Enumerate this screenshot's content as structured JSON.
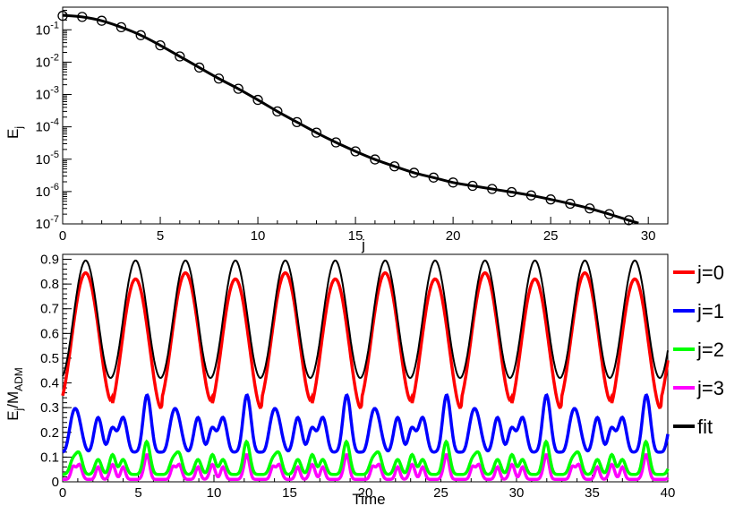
{
  "chart_data": [
    {
      "type": "scatter",
      "xlabel": "j",
      "ylabel": "E",
      "ylabel_sub": "j",
      "xlim": [
        0,
        31
      ],
      "ylim": [
        1e-07,
        0.5
      ],
      "yscale": "log",
      "xticks": [
        0,
        5,
        10,
        15,
        20,
        25,
        30
      ],
      "yticks": [
        {
          "exp": "-7",
          "value": 1e-07
        },
        {
          "exp": "-6",
          "value": 1e-06
        },
        {
          "exp": "-5",
          "value": 1e-05
        },
        {
          "exp": "-4",
          "value": 0.0001
        },
        {
          "exp": "-3",
          "value": 0.001
        },
        {
          "exp": "-2",
          "value": 0.01
        },
        {
          "exp": "-1",
          "value": 0.1
        }
      ],
      "grid": false,
      "series": [
        {
          "marker": "open-circle",
          "color": "#000000",
          "x": [
            0,
            1,
            2,
            3,
            4,
            5,
            6,
            7,
            8,
            9,
            10,
            11,
            12,
            13,
            14,
            15,
            16,
            17,
            18,
            19,
            20,
            21,
            22,
            23,
            24,
            25,
            26,
            27,
            28,
            29
          ],
          "y": [
            0.27,
            0.25,
            0.19,
            0.12,
            0.068,
            0.033,
            0.015,
            0.0068,
            0.0031,
            0.0015,
            0.00068,
            0.0003,
            0.00014,
            6.6e-05,
            3.3e-05,
            1.75e-05,
            9.8e-06,
            6e-06,
            3.8e-06,
            2.7e-06,
            1.9e-06,
            1.5e-06,
            1.2e-06,
            9.6e-07,
            7.6e-07,
            5.7e-07,
            4.2e-07,
            3e-07,
            2e-07,
            1.3e-07
          ]
        },
        {
          "type": "line",
          "color": "#000000",
          "x": [
            0,
            1,
            2,
            3,
            4,
            5,
            6,
            7,
            8,
            9,
            10,
            11,
            12,
            13,
            14,
            15,
            16,
            17,
            18,
            19,
            20,
            21,
            22,
            23,
            24,
            25,
            26,
            27,
            28,
            29,
            29.5
          ],
          "y": [
            0.28,
            0.25,
            0.19,
            0.12,
            0.068,
            0.033,
            0.015,
            0.0068,
            0.0031,
            0.0015,
            0.00068,
            0.0003,
            0.00014,
            6.6e-05,
            3.3e-05,
            1.75e-05,
            9.8e-06,
            6e-06,
            3.8e-06,
            2.7e-06,
            1.9e-06,
            1.5e-06,
            1.2e-06,
            9.6e-07,
            7.6e-07,
            5.7e-07,
            4.2e-07,
            3e-07,
            2e-07,
            1.3e-07,
            1.05e-07
          ]
        }
      ]
    },
    {
      "type": "line",
      "xlabel": "Time",
      "ylabel": "E",
      "ylabel_sub": "j",
      "ylabel_rest": "/M",
      "ylabel_sub2": "ADM",
      "xlim": [
        0,
        40
      ],
      "ylim": [
        0,
        0.92
      ],
      "xticks": [
        "0",
        "5",
        "10",
        "15",
        "20",
        "25",
        "30",
        "35",
        "40"
      ],
      "yticks": [
        "0",
        "0.1",
        "0.2",
        "0.3",
        "0.4",
        "0.5",
        "0.6",
        "0.7",
        "0.8",
        "0.9"
      ],
      "grid": false,
      "legend_position": "right",
      "period": 3.3,
      "series": [
        {
          "name": "j=0",
          "color": "#ff0000",
          "max": 0.845,
          "min": 0.33,
          "alt_max": 0.82,
          "alt_min": 0.3
        },
        {
          "name": "j=1",
          "color": "#0000ff",
          "peaks": [
            0.31,
            0.35,
            0.26
          ],
          "troughs": [
            0.12,
            0.11,
            0.17
          ]
        },
        {
          "name": "j=2",
          "color": "#00ff00",
          "peaks": [
            0.16,
            0.18,
            0.12
          ],
          "troughs": [
            0.03,
            0.02,
            0.08
          ]
        },
        {
          "name": "j=3",
          "color": "#ff00ff",
          "peaks": [
            0.09,
            0.11,
            0.06
          ],
          "troughs": [
            0.0,
            0.0,
            0.02
          ]
        },
        {
          "name": "fit",
          "color": "#000000",
          "max": 0.895,
          "min": 0.42
        }
      ]
    }
  ]
}
